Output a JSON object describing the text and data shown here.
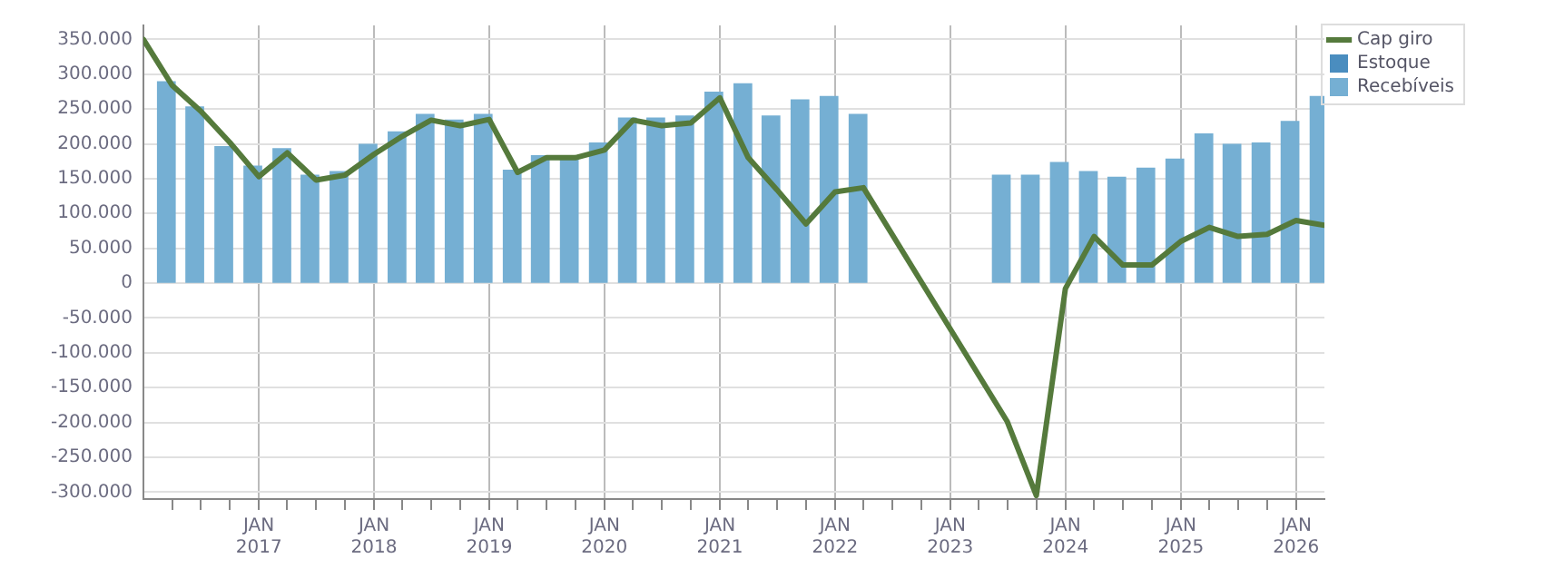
{
  "chart_data": {
    "type": "bar",
    "legend": "top right",
    "grid": true,
    "marker": "none",
    "xlim": [
      "2016-01",
      "2026-04"
    ],
    "xticks": [
      {
        "value": "2016-04",
        "label": null
      },
      {
        "value": "2016-07",
        "label": null
      },
      {
        "value": "2016-10",
        "label": null
      },
      {
        "value": "2017-01",
        "label": "JAN 2017"
      },
      {
        "value": "2017-04",
        "label": null
      },
      {
        "value": "2017-07",
        "label": null
      },
      {
        "value": "2017-10",
        "label": null
      },
      {
        "value": "2018-01",
        "label": "JAN 2018"
      },
      {
        "value": "2018-04",
        "label": null
      },
      {
        "value": "2018-07",
        "label": null
      },
      {
        "value": "2018-10",
        "label": null
      },
      {
        "value": "2019-01",
        "label": "JAN 2019"
      },
      {
        "value": "2019-04",
        "label": null
      },
      {
        "value": "2019-07",
        "label": null
      },
      {
        "value": "2019-10",
        "label": null
      },
      {
        "value": "2020-01",
        "label": "JAN 2020"
      },
      {
        "value": "2020-04",
        "label": null
      },
      {
        "value": "2020-07",
        "label": null
      },
      {
        "value": "2020-10",
        "label": null
      },
      {
        "value": "2021-01",
        "label": "JAN 2021"
      },
      {
        "value": "2021-04",
        "label": null
      },
      {
        "value": "2021-07",
        "label": null
      },
      {
        "value": "2021-10",
        "label": null
      },
      {
        "value": "2022-01",
        "label": "JAN 2022"
      },
      {
        "value": "2022-04",
        "label": null
      },
      {
        "value": "2022-07",
        "label": null
      },
      {
        "value": "2022-10",
        "label": null
      },
      {
        "value": "2023-01",
        "label": "JAN 2023"
      },
      {
        "value": "2023-04",
        "label": null
      },
      {
        "value": "2023-07",
        "label": null
      },
      {
        "value": "2023-10",
        "label": null
      },
      {
        "value": "2024-01",
        "label": "JAN 2024"
      },
      {
        "value": "2024-04",
        "label": null
      },
      {
        "value": "2024-07",
        "label": null
      },
      {
        "value": "2024-10",
        "label": null
      },
      {
        "value": "2025-01",
        "label": "JAN 2025"
      },
      {
        "value": "2025-04",
        "label": null
      },
      {
        "value": "2025-07",
        "label": null
      },
      {
        "value": "2025-10",
        "label": null
      },
      {
        "value": "2026-01",
        "label": "JAN 2026"
      }
    ],
    "ylim": [
      -310000,
      370000
    ],
    "yticks": [
      {
        "value": -300000,
        "label": "-300.000"
      },
      {
        "value": -250000,
        "label": "-250.000"
      },
      {
        "value": -200000,
        "label": "-200.000"
      },
      {
        "value": -150000,
        "label": "-150.000"
      },
      {
        "value": -100000,
        "label": "-100.000"
      },
      {
        "value": -50000,
        "label": "-50.000"
      },
      {
        "value": 0,
        "label": "0"
      },
      {
        "value": 50000,
        "label": "50.000"
      },
      {
        "value": 100000,
        "label": "100.000"
      },
      {
        "value": 150000,
        "label": "150.000"
      },
      {
        "value": 200000,
        "label": "200.000"
      },
      {
        "value": 250000,
        "label": "250.000"
      },
      {
        "value": 300000,
        "label": "300.000"
      },
      {
        "value": 350000,
        "label": "350.000"
      }
    ],
    "x": [
      "2016-02-15",
      "2016-05-15",
      "2016-08-15",
      "2016-11-15",
      "2017-02-15",
      "2017-05-15",
      "2017-08-15",
      "2017-11-15",
      "2018-02-15",
      "2018-05-15",
      "2018-08-15",
      "2018-11-15",
      "2019-02-15",
      "2019-05-15",
      "2019-08-15",
      "2019-11-15",
      "2020-02-15",
      "2020-05-15",
      "2020-08-15",
      "2020-11-15",
      "2021-02-15",
      "2021-05-15",
      "2021-08-15",
      "2021-11-15",
      "2022-02-15",
      "2022-05-15",
      "2022-08-15",
      "2022-11-15",
      "2023-02-15",
      "2023-05-15",
      "2023-08-15",
      "2023-11-15",
      "2024-02-15",
      "2024-05-15",
      "2024-08-15",
      "2024-11-15",
      "2025-02-15",
      "2025-05-15",
      "2025-08-15",
      "2025-11-15",
      "2026-02-15"
    ],
    "series": [
      {
        "name": "Estoque",
        "color": "#4a8dbf",
        "values": [
          null,
          null,
          null,
          null,
          null,
          null,
          null,
          null,
          null,
          null,
          null,
          null,
          null,
          null,
          null,
          null,
          null,
          null,
          null,
          null,
          null,
          null,
          null,
          null,
          null,
          null,
          null,
          null,
          null,
          null,
          null,
          null,
          null,
          null,
          null,
          null,
          null,
          null,
          null,
          null,
          null
        ]
      },
      {
        "name": "Recebíveis",
        "color": "#75afd3",
        "values": [
          289000,
          253000,
          196000,
          168000,
          193000,
          155000,
          160000,
          199000,
          217000,
          242000,
          234000,
          242000,
          162000,
          183000,
          180000,
          201000,
          237000,
          237000,
          240000,
          274000,
          286000,
          240000,
          263000,
          268000,
          242000,
          null,
          null,
          null,
          null,
          155000,
          155000,
          173000,
          160000,
          152000,
          165000,
          178000,
          214000,
          199000,
          201000,
          232000,
          268000
        ]
      },
      {
        "name": "Cap giro",
        "type": "line",
        "color": "#557a3c",
        "x": [
          "2016-01",
          "2016-04",
          "2016-07",
          "2016-10",
          "2017-01",
          "2017-04",
          "2017-07",
          "2017-10",
          "2018-01",
          "2018-04",
          "2018-07",
          "2018-10",
          "2019-01",
          "2019-04",
          "2019-07",
          "2019-10",
          "2020-01",
          "2020-04",
          "2020-07",
          "2020-10",
          "2021-01",
          "2021-04",
          "2021-07",
          "2021-10",
          "2022-01",
          "2022-04",
          "2023-07",
          "2023-10",
          "2024-01",
          "2024-04",
          "2024-07",
          "2024-10",
          "2025-01",
          "2025-04",
          "2025-07",
          "2025-10",
          "2026-01",
          "2026-04"
        ],
        "values": [
          350000,
          284000,
          247000,
          202000,
          153000,
          187000,
          148000,
          155000,
          185000,
          211000,
          234000,
          226000,
          235000,
          159000,
          180000,
          180000,
          191000,
          234000,
          226000,
          230000,
          266000,
          180000,
          134000,
          85000,
          131000,
          137000,
          -199000,
          -305000,
          -8000,
          67000,
          26000,
          26000,
          60000,
          80000,
          67000,
          70000,
          90000,
          83000
        ]
      }
    ]
  }
}
